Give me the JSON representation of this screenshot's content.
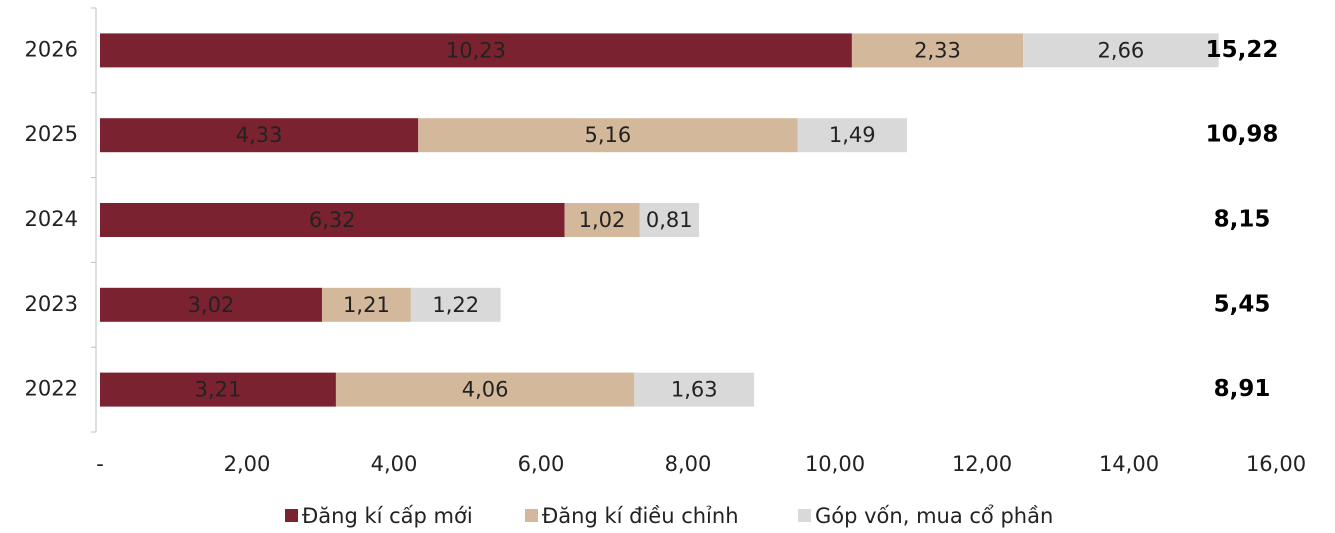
{
  "chart_data": {
    "type": "stacked_barh",
    "categories": [
      "2026",
      "2025",
      "2024",
      "2023",
      "2022"
    ],
    "series": [
      {
        "name": "Đăng kí cấp mới",
        "color": "#7b2230",
        "values": [
          10.23,
          4.33,
          6.32,
          3.02,
          3.21
        ],
        "value_labels": [
          "10,23",
          "4,33",
          "6,32",
          "3,02",
          "3,21"
        ]
      },
      {
        "name": "Đăng kí điều chỉnh",
        "color": "#d4b89c",
        "values": [
          2.33,
          5.16,
          1.02,
          1.21,
          4.06
        ],
        "value_labels": [
          "2,33",
          "5,16",
          "1,02",
          "1,21",
          "4,06"
        ]
      },
      {
        "name": "Góp vốn, mua cổ phần",
        "color": "#d9d9d9",
        "values": [
          2.66,
          1.49,
          0.81,
          1.22,
          1.63
        ],
        "value_labels": [
          "2,66",
          "1,49",
          "0,81",
          "1,22",
          "1,63"
        ]
      }
    ],
    "totals": [
      15.22,
      10.98,
      8.15,
      5.45,
      8.91
    ],
    "totals_labels": [
      "15,22",
      "10,98",
      "8,15",
      "5,45",
      "8,91"
    ],
    "xlim": [
      0,
      16
    ],
    "xticks": [
      {
        "value": 0,
        "label": "-"
      },
      {
        "value": 2,
        "label": "2,00"
      },
      {
        "value": 4,
        "label": "4,00"
      },
      {
        "value": 6,
        "label": "6,00"
      },
      {
        "value": 8,
        "label": "8,00"
      },
      {
        "value": 10,
        "label": "10,00"
      },
      {
        "value": 12,
        "label": "12,00"
      },
      {
        "value": 14,
        "label": "14,00"
      },
      {
        "value": 16,
        "label": "16,00"
      }
    ],
    "legend": "bottom"
  }
}
